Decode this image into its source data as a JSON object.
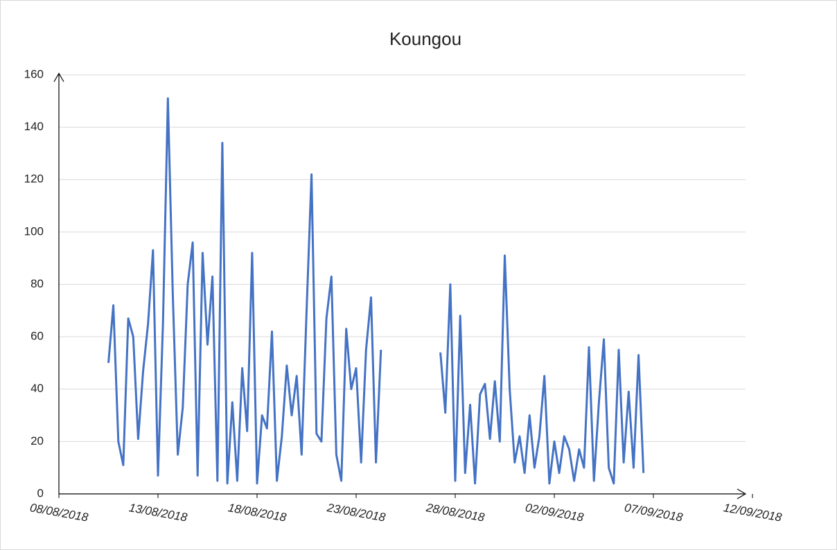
{
  "chart_data": {
    "type": "line",
    "title": "Koungou",
    "x": [
      "2018-08-10T12:00",
      "2018-08-10T18:00",
      "2018-08-11T00:00",
      "2018-08-11T06:00",
      "2018-08-11T12:00",
      "2018-08-11T18:00",
      "2018-08-12T00:00",
      "2018-08-12T06:00",
      "2018-08-12T12:00",
      "2018-08-12T18:00",
      "2018-08-13T00:00",
      "2018-08-13T06:00",
      "2018-08-13T12:00",
      "2018-08-13T18:00",
      "2018-08-14T00:00",
      "2018-08-14T06:00",
      "2018-08-14T12:00",
      "2018-08-14T18:00",
      "2018-08-15T00:00",
      "2018-08-15T06:00",
      "2018-08-15T12:00",
      "2018-08-15T18:00",
      "2018-08-16T00:00",
      "2018-08-16T06:00",
      "2018-08-16T12:00",
      "2018-08-16T18:00",
      "2018-08-17T00:00",
      "2018-08-17T06:00",
      "2018-08-17T12:00",
      "2018-08-17T18:00",
      "2018-08-18T00:00",
      "2018-08-18T06:00",
      "2018-08-18T12:00",
      "2018-08-18T18:00",
      "2018-08-19T00:00",
      "2018-08-19T06:00",
      "2018-08-19T12:00",
      "2018-08-19T18:00",
      "2018-08-20T00:00",
      "2018-08-20T06:00",
      "2018-08-20T12:00",
      "2018-08-20T18:00",
      "2018-08-21T00:00",
      "2018-08-21T06:00",
      "2018-08-21T12:00",
      "2018-08-21T18:00",
      "2018-08-22T00:00",
      "2018-08-22T06:00",
      "2018-08-22T12:00",
      "2018-08-22T18:00",
      "2018-08-23T00:00",
      "2018-08-23T06:00",
      "2018-08-23T12:00",
      "2018-08-23T18:00",
      "2018-08-24T00:00",
      "2018-08-24T06:00",
      "2018-08-26T00:00",
      "2018-08-27T06:00",
      "2018-08-27T12:00",
      "2018-08-27T18:00",
      "2018-08-28T00:00",
      "2018-08-28T06:00",
      "2018-08-28T12:00",
      "2018-08-28T18:00",
      "2018-08-29T00:00",
      "2018-08-29T06:00",
      "2018-08-29T12:00",
      "2018-08-29T18:00",
      "2018-08-30T00:00",
      "2018-08-30T06:00",
      "2018-08-30T12:00",
      "2018-08-30T18:00",
      "2018-08-31T00:00",
      "2018-08-31T06:00",
      "2018-08-31T12:00",
      "2018-08-31T18:00",
      "2018-09-01T00:00",
      "2018-09-01T06:00",
      "2018-09-01T12:00",
      "2018-09-01T18:00",
      "2018-09-02T00:00",
      "2018-09-02T06:00",
      "2018-09-02T12:00",
      "2018-09-02T18:00",
      "2018-09-03T00:00",
      "2018-09-03T06:00",
      "2018-09-03T12:00",
      "2018-09-03T18:00",
      "2018-09-04T00:00",
      "2018-09-04T06:00",
      "2018-09-04T12:00",
      "2018-09-04T18:00",
      "2018-09-05T00:00",
      "2018-09-05T06:00",
      "2018-09-05T12:00",
      "2018-09-05T18:00",
      "2018-09-06T00:00",
      "2018-09-06T06:00",
      "2018-09-06T12:00"
    ],
    "series": [
      {
        "name": "Koungou",
        "color": "#4472c4",
        "values": [
          50,
          72,
          20,
          11,
          67,
          60,
          21,
          47,
          65,
          93,
          7,
          65,
          151,
          76,
          15,
          33,
          80,
          96,
          7,
          92,
          57,
          83,
          5,
          134,
          4,
          35,
          5,
          48,
          24,
          92,
          4,
          30,
          25,
          62,
          5,
          22,
          49,
          30,
          45,
          15,
          70,
          122,
          23,
          20,
          67,
          83,
          15,
          5,
          63,
          40,
          48,
          12,
          55,
          75,
          12,
          55,
          null,
          54,
          31,
          80,
          5,
          68,
          8,
          34,
          4,
          38,
          42,
          21,
          43,
          20,
          91,
          40,
          12,
          22,
          8,
          30,
          10,
          22,
          45,
          4,
          20,
          8,
          22,
          17,
          5,
          17,
          10,
          56,
          5,
          35,
          59,
          10,
          4,
          55,
          12,
          39,
          10,
          53,
          8
        ]
      }
    ],
    "xlim": [
      "2018-08-08",
      "2018-09-12"
    ],
    "xticks": [
      {
        "value": "2018-08-08",
        "label": "08/08/2018"
      },
      {
        "value": "2018-08-13",
        "label": "13/08/2018"
      },
      {
        "value": "2018-08-18",
        "label": "18/08/2018"
      },
      {
        "value": "2018-08-23",
        "label": "23/08/2018"
      },
      {
        "value": "2018-08-28",
        "label": "28/08/2018"
      },
      {
        "value": "2018-09-02",
        "label": "02/09/2018"
      },
      {
        "value": "2018-09-07",
        "label": "07/09/2018"
      },
      {
        "value": "2018-09-12",
        "label": "12/09/2018"
      }
    ],
    "ylim": [
      0,
      160
    ],
    "yticks": [
      0,
      20,
      40,
      60,
      80,
      100,
      120,
      140,
      160
    ],
    "grid": true
  }
}
